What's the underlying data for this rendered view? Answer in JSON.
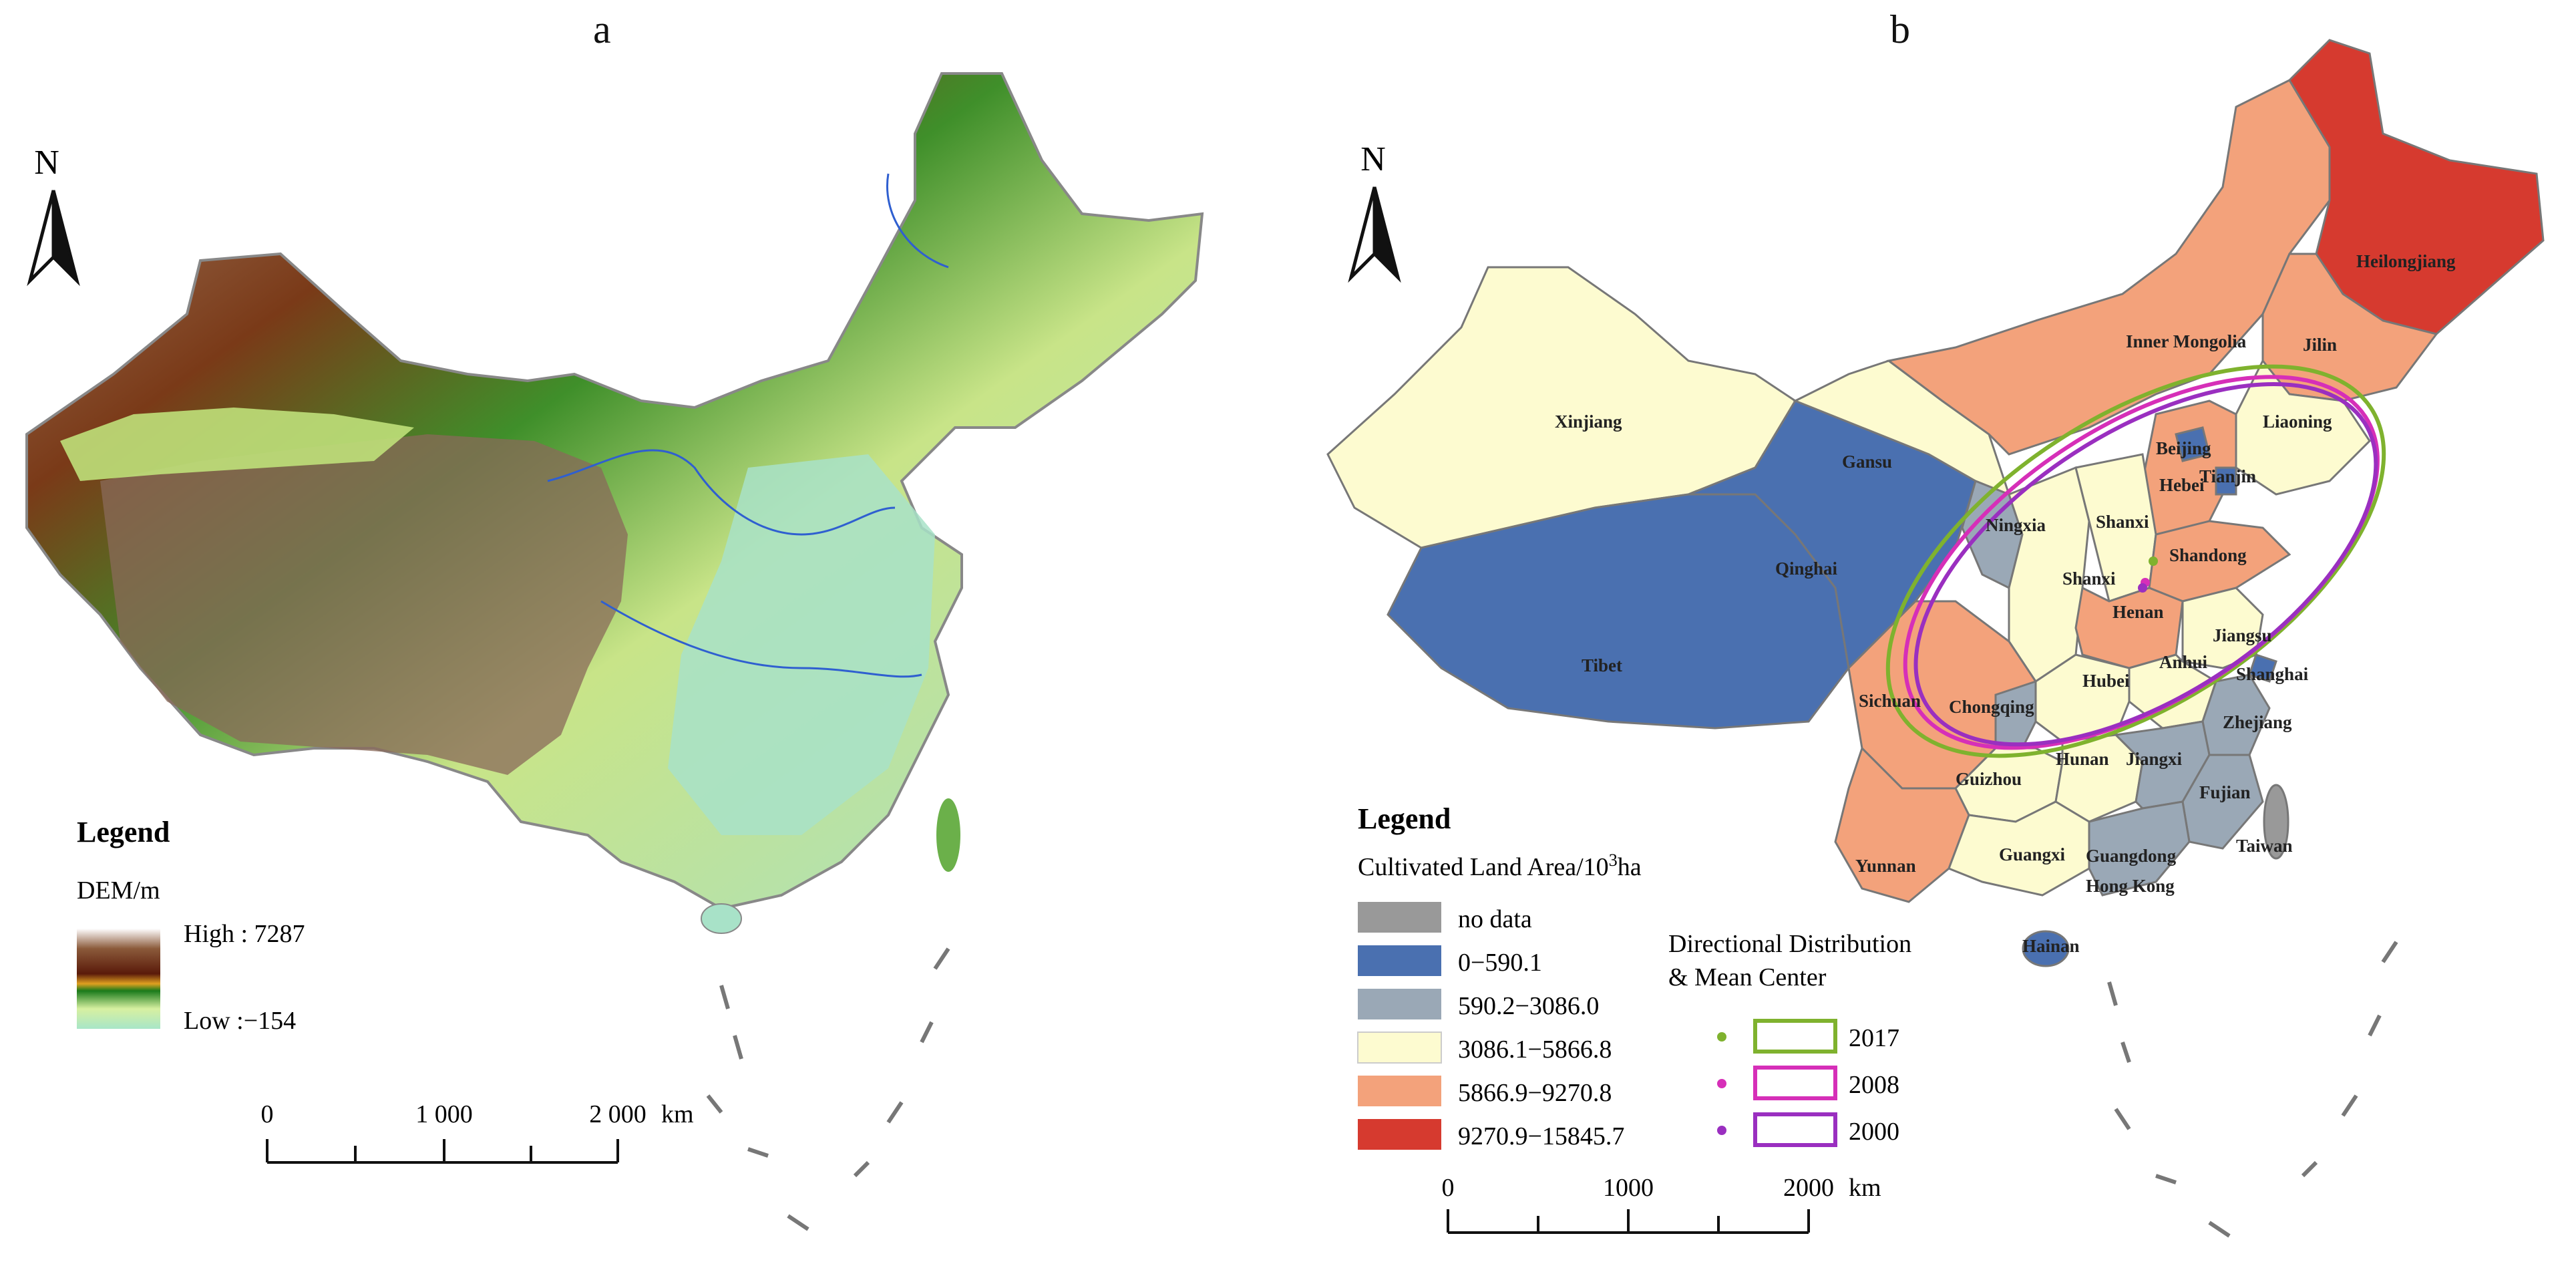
{
  "panel_a": {
    "label": "a",
    "north": "N",
    "legend": {
      "title": "Legend",
      "subtitle": "DEM/m",
      "high": "High : 7287",
      "low": "Low :−154"
    },
    "scale": {
      "ticks": [
        "0",
        "1 000",
        "2 000"
      ],
      "unit": "km"
    }
  },
  "panel_b": {
    "label": "b",
    "north": "N",
    "legend": {
      "title": "Legend",
      "subtitle_main": "Cultivated Land Area/10",
      "subtitle_sup": "3",
      "subtitle_unit": "ha",
      "classes": [
        {
          "label": "no data",
          "color": "#999999"
        },
        {
          "label": "0−590.1",
          "color": "#4a70b0"
        },
        {
          "label": "590.2−3086.0",
          "color": "#9aa8b6"
        },
        {
          "label": "3086.1−5866.8",
          "color": "#fdfbd0"
        },
        {
          "label": "5866.9−9270.8",
          "color": "#f3a27b"
        },
        {
          "label": "9270.9−15845.7",
          "color": "#d63a2f"
        }
      ],
      "directional_title_1": "Directional Distribution",
      "directional_title_2": "& Mean Center",
      "years": [
        {
          "year": "2017",
          "color": "#7fb22e"
        },
        {
          "year": "2008",
          "color": "#d62fb8"
        },
        {
          "year": "2000",
          "color": "#9a2fc0"
        }
      ]
    },
    "scale": {
      "ticks": [
        "0",
        "1000",
        "2000"
      ],
      "unit": "km"
    },
    "provinces": {
      "heilongjiang": "Heilongjiang",
      "inner_mongolia": "Inner Mongolia",
      "jilin": "Jilin",
      "liaoning": "Liaoning",
      "xinjiang": "Xinjiang",
      "gansu": "Gansu",
      "beijing": "Beijing",
      "hebei": "Hebei",
      "tianjin": "Tianjin",
      "ningxia": "Ningxia",
      "shanxi_1": "Shanxi",
      "shanxi_2": "Shanxi",
      "shandong": "Shandong",
      "qinghai": "Qinghai",
      "henan": "Henan",
      "tibet": "Tibet",
      "jiangsu": "Jiangsu",
      "anhui": "Anhui",
      "shanghai": "Shanghai",
      "hubei": "Hubei",
      "sichuan": "Sichuan",
      "chongqing": "Chongqing",
      "zhejiang": "Zhejiang",
      "guizhou": "Guizhou",
      "hunan": "Hunan",
      "jiangxi": "Jiangxi",
      "fujian": "Fujian",
      "yunnan": "Yunnan",
      "guangxi": "Guangxi",
      "guangdong": "Guangdong",
      "hong_kong": "Hong Kong",
      "taiwan": "Taiwan",
      "hainan": "Hainan"
    }
  }
}
